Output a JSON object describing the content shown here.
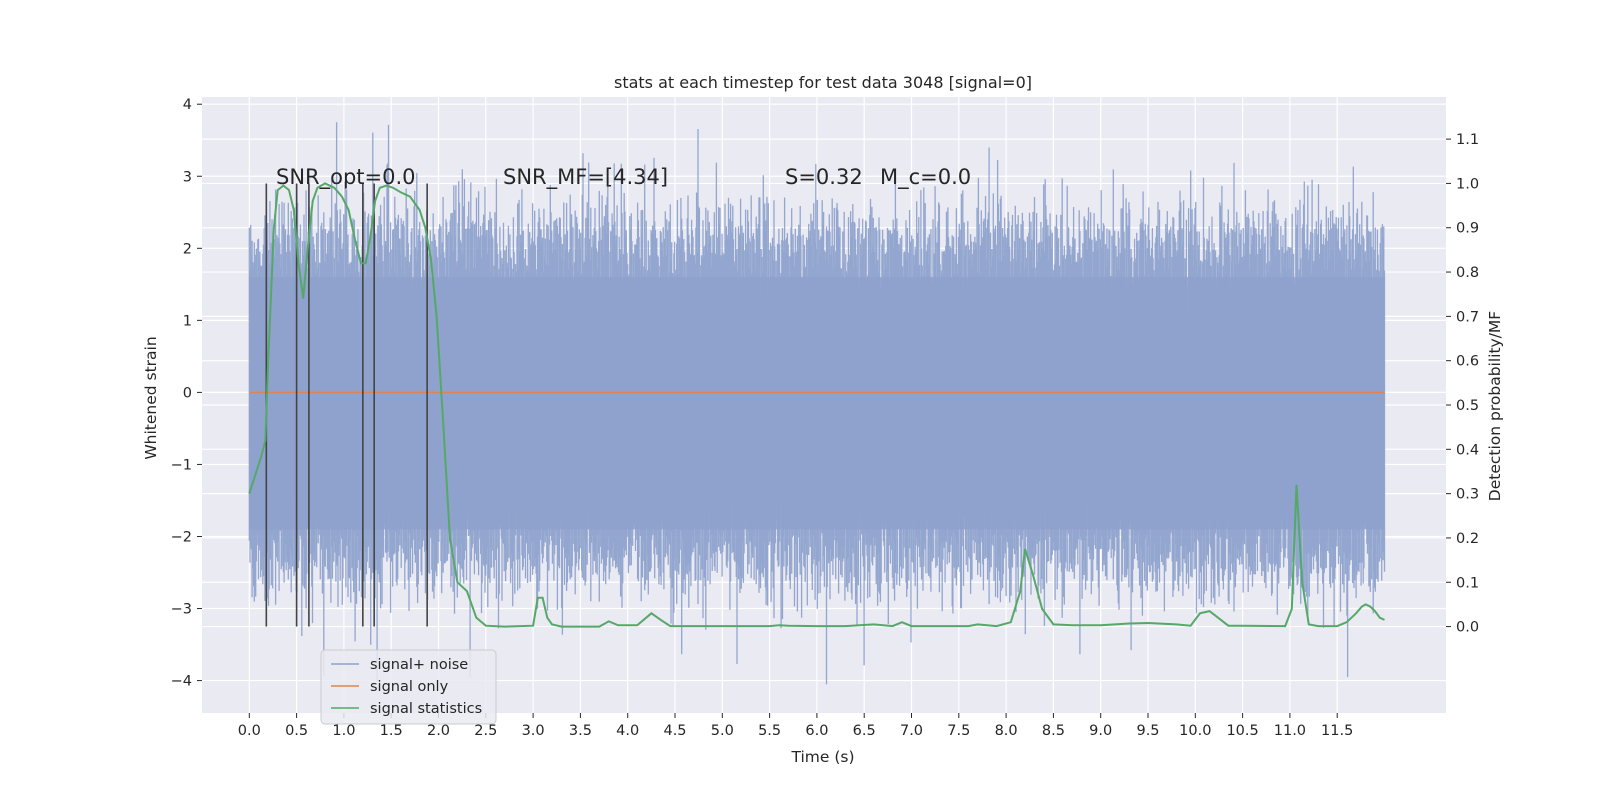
{
  "colors": {
    "background": "#eaeaf2",
    "grid": "#ffffff",
    "noise": "#8ea2cc",
    "signal": "#dd8452",
    "statistics": "#55a868",
    "marker": "#444444"
  },
  "chart_data": {
    "type": "line",
    "title": "stats at each timestep for test data 3048 [signal=0]",
    "xlabel": "Time (s)",
    "ylabel": "Whitened strain",
    "y2label": "Detection probability/MF",
    "xlim": [
      -0.5,
      12.65
    ],
    "ylim": [
      -4.45,
      4.1
    ],
    "y2lim": [
      -0.195,
      1.195
    ],
    "x_ticks": [
      0.0,
      0.5,
      1.0,
      1.5,
      2.0,
      2.5,
      3.0,
      3.5,
      4.0,
      4.5,
      5.0,
      5.5,
      6.0,
      6.5,
      7.0,
      7.5,
      8.0,
      8.5,
      9.0,
      9.5,
      10.0,
      10.5,
      11.0,
      11.5
    ],
    "x_tick_labels": [
      "0.0",
      "0.5",
      "1.0",
      "1.5",
      "2.0",
      "2.5",
      "3.0",
      "3.5",
      "4.0",
      "4.5",
      "5.0",
      "5.5",
      "6.0",
      "6.5",
      "7.0",
      "7.5",
      "8.0",
      "8.5",
      "9.0",
      "9.5",
      "10.0",
      "10.5",
      "11.0",
      "11.5"
    ],
    "y_ticks": [
      4,
      3,
      2,
      1,
      0,
      -1,
      -2,
      -3,
      -4
    ],
    "y_tick_labels": [
      "4",
      "3",
      "2",
      "1",
      "0",
      "−1",
      "−2",
      "−3",
      "−4"
    ],
    "y2_ticks": [
      1.1,
      1.0,
      0.9,
      0.8,
      0.7,
      0.6,
      0.5,
      0.4,
      0.3,
      0.2,
      0.1,
      0.0
    ],
    "y2_tick_labels": [
      "1.1",
      "1.0",
      "0.9",
      "0.8",
      "0.7",
      "0.6",
      "0.5",
      "0.4",
      "0.3",
      "0.2",
      "0.1",
      "0.0"
    ],
    "grid": true,
    "legend_position": "lower-left",
    "annotations": [
      "SNR_opt=0.0",
      "SNR_MF=[4.34]",
      "S=0.32",
      "M_c=0.0"
    ],
    "series": [
      {
        "name": "signal+ noise",
        "kind": "noise",
        "x_range": [
          0.0,
          12.0
        ],
        "approx_envelope_core": [
          -2.3,
          2.1
        ],
        "approx_extremes": [
          -4.05,
          3.75
        ]
      },
      {
        "name": "signal only",
        "kind": "flat",
        "x_range": [
          0.0,
          12.0
        ],
        "value": 0.0
      },
      {
        "name": "signal statistics",
        "kind": "line",
        "axis": "right",
        "x": [
          0.0,
          0.12,
          0.17,
          0.2,
          0.26,
          0.3,
          0.36,
          0.42,
          0.47,
          0.52,
          0.57,
          0.62,
          0.67,
          0.72,
          0.8,
          0.9,
          0.98,
          1.05,
          1.12,
          1.18,
          1.23,
          1.28,
          1.33,
          1.38,
          1.45,
          1.52,
          1.6,
          1.7,
          1.8,
          1.86,
          1.92,
          1.98,
          2.05,
          2.12,
          2.2,
          2.3,
          2.4,
          2.5,
          2.7,
          3.0,
          3.05,
          3.1,
          3.15,
          3.2,
          3.3,
          3.5,
          3.7,
          3.8,
          3.9,
          4.1,
          4.25,
          4.35,
          4.45,
          4.6,
          5.0,
          5.5,
          5.6,
          5.7,
          6.0,
          6.3,
          6.6,
          6.8,
          6.9,
          7.0,
          7.4,
          7.6,
          7.7,
          7.9,
          8.05,
          8.15,
          8.2,
          8.28,
          8.38,
          8.5,
          8.7,
          9.0,
          9.3,
          9.5,
          9.8,
          9.95,
          10.05,
          10.15,
          10.35,
          10.5,
          10.95,
          11.02,
          11.07,
          11.13,
          11.2,
          11.3,
          11.5,
          11.6,
          11.7,
          11.76,
          11.8,
          11.85,
          11.9,
          11.95,
          12.0
        ],
        "values": [
          0.3,
          0.38,
          0.42,
          0.6,
          0.9,
          0.985,
          0.995,
          0.985,
          0.94,
          0.82,
          0.74,
          0.86,
          0.96,
          0.99,
          1.0,
          0.99,
          0.97,
          0.94,
          0.87,
          0.82,
          0.82,
          0.88,
          0.96,
          0.99,
          0.995,
          0.99,
          0.98,
          0.97,
          0.94,
          0.9,
          0.83,
          0.7,
          0.46,
          0.2,
          0.1,
          0.08,
          0.02,
          0.002,
          0.0,
          0.002,
          0.065,
          0.065,
          0.02,
          0.005,
          0.0,
          0.0,
          0.0,
          0.012,
          0.003,
          0.003,
          0.03,
          0.015,
          0.001,
          0.001,
          0.001,
          0.001,
          0.003,
          0.002,
          0.001,
          0.001,
          0.005,
          0.001,
          0.01,
          0.001,
          0.001,
          0.001,
          0.005,
          0.001,
          0.01,
          0.08,
          0.175,
          0.12,
          0.04,
          0.005,
          0.003,
          0.003,
          0.007,
          0.008,
          0.005,
          0.002,
          0.03,
          0.035,
          0.002,
          0.002,
          0.001,
          0.04,
          0.32,
          0.1,
          0.005,
          0.001,
          0.001,
          0.01,
          0.03,
          0.045,
          0.05,
          0.045,
          0.035,
          0.02,
          0.015
        ]
      }
    ],
    "markers_x": [
      0.18,
      0.5,
      0.63,
      1.2,
      1.32,
      1.88
    ]
  }
}
